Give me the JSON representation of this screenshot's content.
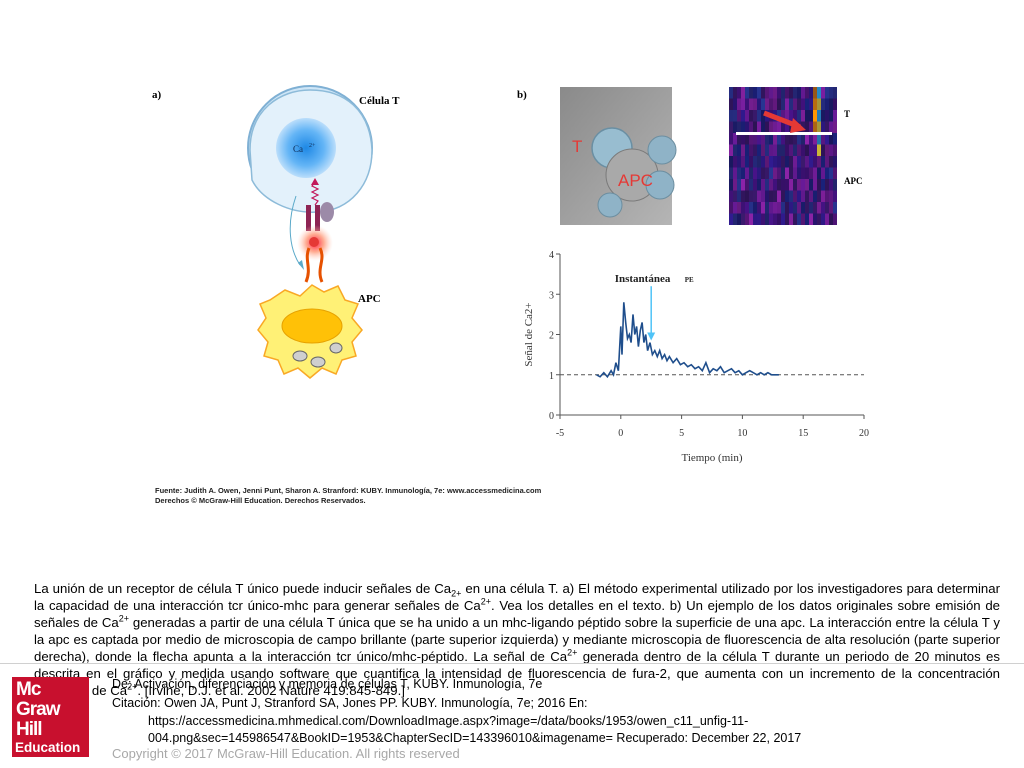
{
  "figure": {
    "panel_a_label": "a)",
    "panel_b_label": "b)",
    "tcell_label": "Célula T",
    "ca_label": "Ca",
    "ca_sup": "2+",
    "apc_label": "APC",
    "micro_t_label": "T",
    "micro_apc_label": "APC",
    "kymo_t_label": "T",
    "kymo_apc_label": "APC",
    "snapshot_label": "Instantánea",
    "snapshot_sub": "PE"
  },
  "chart_data": {
    "type": "line",
    "xlabel": "Tiempo (min)",
    "ylabel": "Señal de Ca2+",
    "xticks": [
      "-5",
      "0",
      "5",
      "10",
      "15",
      "20"
    ],
    "yticks": [
      "0",
      "1",
      "2",
      "3",
      "4"
    ],
    "xlim": [
      -5,
      20
    ],
    "ylim": [
      0,
      4
    ],
    "baseline": 1,
    "annotation": {
      "text": "Instantánea PE",
      "x": 2.5
    },
    "series": [
      {
        "x": [
          -2,
          -1.7,
          -1.4,
          -1.1,
          -0.8,
          -0.6,
          -0.4,
          -0.2,
          0,
          0.1,
          0.25,
          0.4,
          0.55,
          0.7,
          0.85,
          1.0,
          1.15,
          1.3,
          1.45,
          1.6,
          1.75,
          1.9,
          2.05,
          2.2,
          2.4,
          2.6,
          2.8,
          3.0,
          3.2,
          3.4,
          3.6,
          3.8,
          4.0,
          4.3,
          4.6,
          4.9,
          5.2,
          5.5,
          5.8,
          6.1,
          6.4,
          6.7,
          7.0,
          7.3,
          7.6,
          7.9,
          8.2,
          8.5,
          8.8,
          9.1,
          9.4,
          9.7,
          10.0,
          10.3,
          10.6,
          10.9,
          11.2,
          11.5,
          11.8,
          12.1,
          12.4,
          12.7,
          13.0
        ],
        "y": [
          1.0,
          0.95,
          1.05,
          0.95,
          1.1,
          1.0,
          1.3,
          1.1,
          2.2,
          1.5,
          2.8,
          2.3,
          1.9,
          2.0,
          1.8,
          2.5,
          2.0,
          2.2,
          1.7,
          2.1,
          2.3,
          1.8,
          2.0,
          1.6,
          1.8,
          1.5,
          1.6,
          1.45,
          1.6,
          1.4,
          1.5,
          1.35,
          1.45,
          1.3,
          1.4,
          1.25,
          1.3,
          1.2,
          1.25,
          1.15,
          1.2,
          1.1,
          1.3,
          1.05,
          1.15,
          1.1,
          1.2,
          1.05,
          1.1,
          1.15,
          1.05,
          1.1,
          1.0,
          1.05,
          1.1,
          1.05,
          1.0,
          1.05,
          1.0,
          1.05,
          1.0,
          1.0,
          1.0
        ]
      }
    ]
  },
  "source": {
    "line1": "Fuente: Judith A. Owen, Jenni Punt, Sharon A. Stranford: KUBY. Inmunología, 7e: www.accessmedicina.com",
    "line2": "Derechos © McGraw-Hill Education. Derechos Reservados."
  },
  "caption": {
    "p1": "La unión de un receptor de célula T único puede inducir señales de Ca",
    "p1_sub": "2+",
    "p2": " en una célula T. a) El método experimental utilizado por los investigadores para determinar la capacidad de una interacción tcr único-mhc para generar señales de Ca",
    "p2_sup": "2+",
    "p3": ". Vea los detalles en el texto. b) Un ejemplo de los datos originales sobre emisión de señales de Ca",
    "p3_sup": "2+",
    "p4": " generadas a partir de una célula T única que se ha unido a un mhc-ligando péptido sobre la superficie de una apc. La interacción entre la célula T y la apc es captada por medio de microscopia de campo brillante (parte superior izquierda) y mediante microscopia de fluorescencia de alta resolución (parte superior derecha), donde la flecha apunta a la interacción tcr único/mhc-péptido. La señal de Ca",
    "p4_sup": "2+",
    "p5": " generada dentro de la célula T durante un periodo de 20 minutos es descrita en el gráfico y medida usando software que cuantifica la intensidad de fluorescencia de fura-2, que aumenta con un incremento de la concentración citosólica de Ca",
    "p5_sup": "2+",
    "p6": ". [Irvine, D.J. et al. 2002 Nature 419:845-849.]"
  },
  "footer": {
    "logo_l1": "Mc",
    "logo_l2": "Graw",
    "logo_l3": "Hill",
    "logo_l4": "Education",
    "title_line": "De: Activación, diferenciación y memoria de células T, KUBY. Inmunología, 7e",
    "citation": "Citación: Owen JA, Punt J, Stranford SA, Jones PP. KUBY. Inmunología, 7e; 2016 En:",
    "url1": "https://accessmedicina.mhmedical.com/DownloadImage.aspx?image=/data/books/1953/owen_c11_unfig-11-",
    "url2": "004.png&sec=145986547&BookID=1953&ChapterSecID=143396010&imagename= Recuperado: December 22, 2017",
    "copyright": "Copyright © 2017 McGraw-Hill Education. All rights reserved"
  }
}
